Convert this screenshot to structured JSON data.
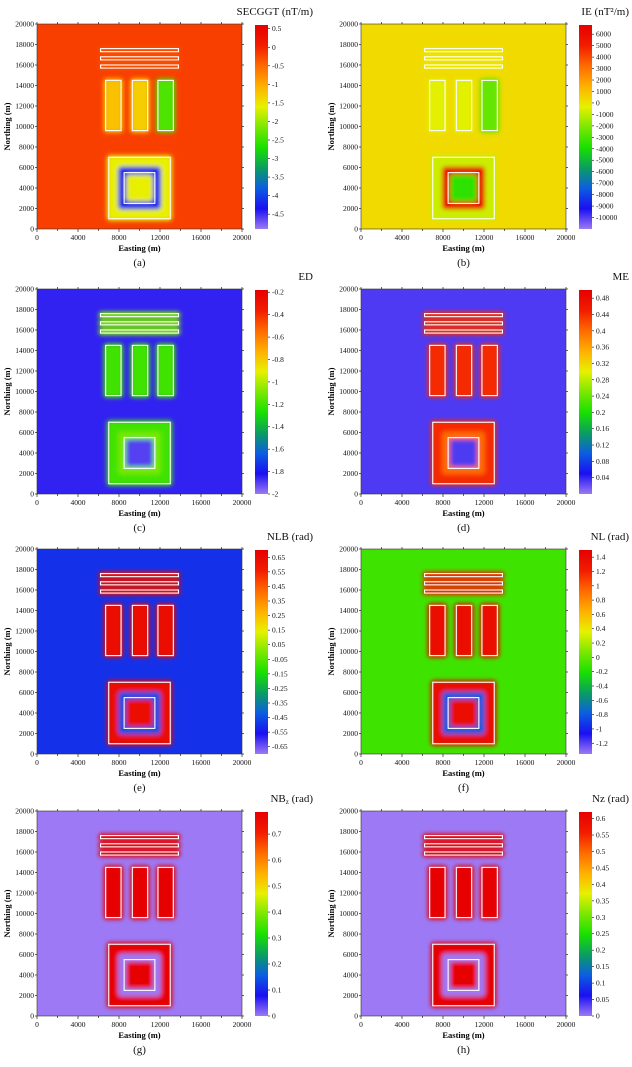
{
  "chart_data": [
    {
      "type": "heatmap",
      "panel_label": "(a)",
      "title": "SECGGT (nT/m)",
      "xlabel": "Easting (m)",
      "ylabel": "Northing (m)",
      "xlim": [
        0,
        20000
      ],
      "ylim": [
        0,
        20000
      ],
      "xticks": [
        "0",
        "4000",
        "8000",
        "12000",
        "16000",
        "20000"
      ],
      "yticks": [
        "0",
        "2000",
        "4000",
        "6000",
        "8000",
        "10000",
        "12000",
        "14000",
        "16000",
        "18000",
        "20000"
      ],
      "colorbar": {
        "min": -4.9,
        "max": 0.6,
        "ticks": [
          "0.5",
          "0",
          "-0.5",
          "-1",
          "-1.5",
          "-2",
          "-2.5",
          "-3",
          "-3.5",
          "-4",
          "-4.5"
        ],
        "tick_values": [
          0.5,
          0,
          -0.5,
          -1,
          -1.5,
          -2,
          -2.5,
          -3,
          -3.5,
          -4,
          -4.5
        ]
      },
      "background_value": -0.2,
      "bodies_value": {
        "bars": -0.3,
        "rect1": -1.2,
        "rect2": -1.3,
        "rect3": -2.4,
        "square_outer": -1.6,
        "square_inner": -4.2,
        "square_core": -1.6
      }
    },
    {
      "type": "heatmap",
      "panel_label": "(b)",
      "title": "IE (nT²/m)",
      "xlabel": "Easting (m)",
      "ylabel": "Northing (m)",
      "xlim": [
        0,
        20000
      ],
      "ylim": [
        0,
        20000
      ],
      "xticks": [
        "0",
        "4000",
        "8000",
        "12000",
        "16000",
        "20000"
      ],
      "yticks": [
        "0",
        "2000",
        "4000",
        "6000",
        "8000",
        "10000",
        "12000",
        "14000",
        "16000",
        "18000",
        "20000"
      ],
      "colorbar": {
        "min": -11000,
        "max": 6800,
        "ticks": [
          "6000",
          "5000",
          "4000",
          "3000",
          "2000",
          "1000",
          "0",
          "-1000",
          "-2000",
          "-3000",
          "-4000",
          "-5000",
          "-6000",
          "-7000",
          "-8000",
          "-9000",
          "-10000"
        ],
        "tick_values": [
          6000,
          5000,
          4000,
          3000,
          2000,
          1000,
          0,
          -1000,
          -2000,
          -3000,
          -4000,
          -5000,
          -6000,
          -7000,
          -8000,
          -9000,
          -10000
        ]
      },
      "background_value": 300,
      "bodies_value": {
        "bars": 0,
        "rect1": -400,
        "rect2": -400,
        "rect3": -2500,
        "square_outer": -800,
        "square_inner": 6500,
        "square_core": -3500
      }
    },
    {
      "type": "heatmap",
      "panel_label": "(c)",
      "title": "ED",
      "xlabel": "Easting (m)",
      "ylabel": "Northing (m)",
      "xlim": [
        0,
        20000
      ],
      "ylim": [
        0,
        20000
      ],
      "xticks": [
        "0",
        "4000",
        "8000",
        "12000",
        "16000",
        "20000"
      ],
      "yticks": [
        "0",
        "2000",
        "4000",
        "6000",
        "8000",
        "10000",
        "12000",
        "14000",
        "16000",
        "18000",
        "20000"
      ],
      "colorbar": {
        "min": -2,
        "max": -0.18,
        "ticks": [
          "-0.2",
          "-0.4",
          "-0.6",
          "-0.8",
          "-1",
          "-1.2",
          "-1.4",
          "-1.6",
          "-1.8",
          "-2"
        ],
        "tick_values": [
          -0.2,
          -0.4,
          -0.6,
          -0.8,
          -1,
          -1.2,
          -1.4,
          -1.6,
          -1.8,
          -2
        ]
      },
      "background_value": -1.85,
      "bodies_value": {
        "bars": -1.1,
        "rect1": -1.2,
        "rect2": -1.2,
        "rect3": -1.2,
        "square_outer": -1.2,
        "square_inner": -1.1,
        "square_core": -1.9
      }
    },
    {
      "type": "heatmap",
      "panel_label": "(d)",
      "title": "ME",
      "xlabel": "Easting (m)",
      "ylabel": "Northing (m)",
      "xlim": [
        0,
        20000
      ],
      "ylim": [
        0,
        20000
      ],
      "xticks": [
        "0",
        "4000",
        "8000",
        "12000",
        "16000",
        "20000"
      ],
      "yticks": [
        "0",
        "2000",
        "4000",
        "6000",
        "8000",
        "10000",
        "12000",
        "14000",
        "16000",
        "18000",
        "20000"
      ],
      "colorbar": {
        "min": 0.0,
        "max": 0.5,
        "ticks": [
          "0.48",
          "0.44",
          "0.4",
          "0.36",
          "0.32",
          "0.28",
          "0.24",
          "0.2",
          "0.16",
          "0.12",
          "0.08",
          "0.04"
        ],
        "tick_values": [
          0.48,
          0.44,
          0.4,
          0.36,
          0.32,
          0.28,
          0.24,
          0.2,
          0.16,
          0.12,
          0.08,
          0.04
        ]
      },
      "background_value": 0.03,
      "bodies_value": {
        "bars": 0.44,
        "rect1": 0.44,
        "rect2": 0.44,
        "rect3": 0.44,
        "square_outer": 0.44,
        "square_inner": 0.4,
        "square_core": 0.03
      }
    },
    {
      "type": "heatmap",
      "panel_label": "(e)",
      "title": "NLB (rad)",
      "xlabel": "Easting (m)",
      "ylabel": "Northing (m)",
      "xlim": [
        0,
        20000
      ],
      "ylim": [
        0,
        20000
      ],
      "xticks": [
        "0",
        "4000",
        "8000",
        "12000",
        "16000",
        "20000"
      ],
      "yticks": [
        "0",
        "2000",
        "4000",
        "6000",
        "8000",
        "10000",
        "12000",
        "14000",
        "16000",
        "18000",
        "20000"
      ],
      "colorbar": {
        "min": -0.7,
        "max": 0.7,
        "ticks": [
          "0.65",
          "0.55",
          "0.45",
          "0.35",
          "0.25",
          "0.15",
          "0.05",
          "-0.05",
          "-0.15",
          "-0.25",
          "-0.35",
          "-0.45",
          "-0.55",
          "-0.65"
        ],
        "tick_values": [
          0.65,
          0.55,
          0.45,
          0.35,
          0.25,
          0.15,
          0.05,
          -0.05,
          -0.15,
          -0.25,
          -0.35,
          -0.45,
          -0.55,
          -0.65
        ]
      },
      "background_value": -0.5,
      "bodies_value": {
        "bars": 0.65,
        "rect1": 0.65,
        "rect2": 0.65,
        "rect3": 0.65,
        "square_outer": 0.65,
        "square_inner": -0.45,
        "square_core": 0.65
      }
    },
    {
      "type": "heatmap",
      "panel_label": "(f)",
      "title": "NL (rad)",
      "xlabel": "Easting (m)",
      "ylabel": "Northing (m)",
      "xlim": [
        0,
        20000
      ],
      "ylim": [
        0,
        20000
      ],
      "xticks": [
        "0",
        "4000",
        "8000",
        "12000",
        "16000",
        "20000"
      ],
      "yticks": [
        "0",
        "2000",
        "4000",
        "6000",
        "8000",
        "10000",
        "12000",
        "14000",
        "16000",
        "18000",
        "20000"
      ],
      "colorbar": {
        "min": -1.35,
        "max": 1.5,
        "ticks": [
          "1.4",
          "1.2",
          "1",
          "0.8",
          "0.6",
          "0.4",
          "0.2",
          "0",
          "-0.2",
          "-0.4",
          "-0.6",
          "-0.8",
          "-1",
          "-1.2"
        ],
        "tick_values": [
          1.4,
          1.2,
          1,
          0.8,
          0.6,
          0.4,
          0.2,
          0,
          -0.2,
          -0.4,
          -0.6,
          -0.8,
          -1,
          -1.2
        ]
      },
      "background_value": -0.1,
      "bodies_value": {
        "bars": 1.2,
        "rect1": 1.4,
        "rect2": 1.4,
        "rect3": 1.4,
        "square_outer": 1.4,
        "square_inner": -0.8,
        "square_core": 1.4
      }
    },
    {
      "type": "heatmap",
      "panel_label": "(g)",
      "title": "NB",
      "title_subscript": "z",
      "title_unit": " (rad)",
      "xlabel": "Easting (m)",
      "ylabel": "Northing (m)",
      "xlim": [
        0,
        20000
      ],
      "ylim": [
        0,
        20000
      ],
      "xticks": [
        "0",
        "4000",
        "8000",
        "12000",
        "16000",
        "20000"
      ],
      "yticks": [
        "0",
        "2000",
        "4000",
        "6000",
        "8000",
        "10000",
        "12000",
        "14000",
        "16000",
        "18000",
        "20000"
      ],
      "colorbar": {
        "min": 0,
        "max": 0.785,
        "ticks": [
          "0.7",
          "0.6",
          "0.5",
          "0.4",
          "0.3",
          "0.2",
          "0.1",
          "0"
        ],
        "tick_values": [
          0.7,
          0.6,
          0.5,
          0.4,
          0.3,
          0.2,
          0.1,
          0
        ]
      },
      "background_value": 0,
      "bodies_value": {
        "bars": 0.78,
        "rect1": 0.78,
        "rect2": 0.78,
        "rect3": 0.78,
        "square_outer": 0.78,
        "square_inner": 0,
        "square_core": 0.78
      }
    },
    {
      "type": "heatmap",
      "panel_label": "(h)",
      "title": "Nz (rad)",
      "xlabel": "Easting (m)",
      "ylabel": "Northing (m)",
      "xlim": [
        0,
        20000
      ],
      "ylim": [
        0,
        20000
      ],
      "xticks": [
        "0",
        "4000",
        "8000",
        "12000",
        "16000",
        "20000"
      ],
      "yticks": [
        "0",
        "2000",
        "4000",
        "6000",
        "8000",
        "10000",
        "12000",
        "14000",
        "16000",
        "18000",
        "20000"
      ],
      "colorbar": {
        "min": 0,
        "max": 0.62,
        "ticks": [
          "0.6",
          "0.55",
          "0.5",
          "0.45",
          "0.4",
          "0.35",
          "0.3",
          "0.25",
          "0.2",
          "0.15",
          "0.1",
          "0.05",
          "0"
        ],
        "tick_values": [
          0.6,
          0.55,
          0.5,
          0.45,
          0.4,
          0.35,
          0.3,
          0.25,
          0.2,
          0.15,
          0.1,
          0.05,
          0
        ]
      },
      "background_value": 0,
      "bodies_value": {
        "bars": 0.62,
        "rect1": 0.62,
        "rect2": 0.62,
        "rect3": 0.62,
        "square_outer": 0.62,
        "square_inner": 0,
        "square_core": 0.62
      }
    }
  ],
  "model_bodies": {
    "bars": [
      {
        "x": [
          6200,
          13800
        ],
        "y": [
          17300,
          17600
        ]
      },
      {
        "x": [
          6200,
          13800
        ],
        "y": [
          16500,
          16800
        ]
      },
      {
        "x": [
          6200,
          13800
        ],
        "y": [
          15700,
          16000
        ]
      }
    ],
    "rects": [
      {
        "x": [
          6700,
          8200
        ],
        "y": [
          9600,
          14500
        ]
      },
      {
        "x": [
          9300,
          10800
        ],
        "y": [
          9600,
          14500
        ]
      },
      {
        "x": [
          11800,
          13300
        ],
        "y": [
          9600,
          14500
        ]
      }
    ],
    "square_outer": {
      "x": [
        7000,
        13000
      ],
      "y": [
        1000,
        7000
      ]
    },
    "square_inner": {
      "x": [
        8500,
        11500
      ],
      "y": [
        2500,
        5500
      ]
    }
  },
  "colors": {
    "colormap": [
      "#9d79f5",
      "#1a10f0",
      "#0c5ee0",
      "#0a9e60",
      "#19e000",
      "#7be800",
      "#e8f000",
      "#ffb000",
      "#ff6a00",
      "#f21c00",
      "#e60000"
    ],
    "outline": "#ffffff"
  }
}
